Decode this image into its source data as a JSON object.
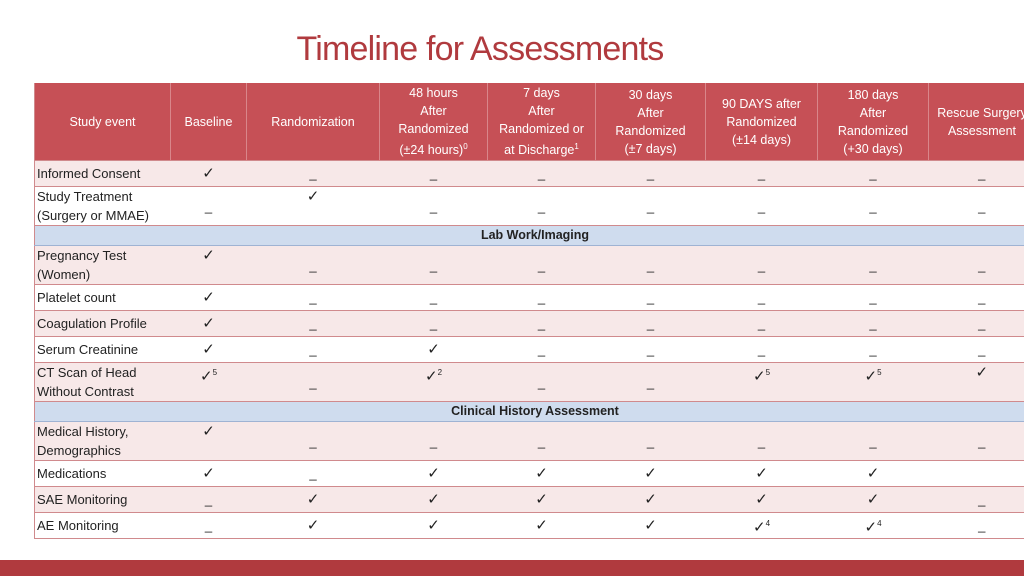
{
  "title": "Timeline for Assessments",
  "check_symbol": "✓",
  "dash_symbol": "_",
  "headers": [
    {
      "lines": [
        "Study event"
      ]
    },
    {
      "lines": [
        "Baseline"
      ]
    },
    {
      "lines": [
        "Randomization"
      ]
    },
    {
      "lines": [
        "48 hours",
        "After",
        "Randomized",
        "(±24 hours)"
      ],
      "sup": "0"
    },
    {
      "lines": [
        "7 days",
        "After",
        "Randomized or",
        "at Discharge"
      ],
      "sup": "1"
    },
    {
      "lines": [
        "30 days",
        "After",
        "Randomized",
        "(±7 days)"
      ]
    },
    {
      "lines": [
        "90 DAYS after",
        "Randomized",
        "(±14 days)"
      ]
    },
    {
      "lines": [
        "180 days",
        "After",
        "Randomized",
        "(+30 days)"
      ]
    },
    {
      "lines": [
        "Rescue Surgery",
        "Assessment"
      ]
    }
  ],
  "rows": [
    {
      "type": "row",
      "event": [
        "Informed Consent"
      ],
      "cells": [
        "c",
        "d",
        "d",
        "d",
        "d",
        "d",
        "d",
        "d"
      ]
    },
    {
      "type": "row",
      "event": [
        "Study Treatment",
        "(Surgery or MMAE)"
      ],
      "cells": [
        "d",
        "c",
        "d",
        "d",
        "d",
        "d",
        "d",
        "d"
      ]
    },
    {
      "type": "section",
      "label": "Lab Work/Imaging"
    },
    {
      "type": "row",
      "event": [
        "Pregnancy Test",
        "(Women)"
      ],
      "cells": [
        "c",
        "d",
        "d",
        "d",
        "d",
        "d",
        "d",
        "d"
      ]
    },
    {
      "type": "row",
      "event": [
        "Platelet count"
      ],
      "cells": [
        "c",
        "d",
        "d",
        "d",
        "d",
        "d",
        "d",
        "d"
      ]
    },
    {
      "type": "row",
      "event": [
        "Coagulation Profile"
      ],
      "cells": [
        "c",
        "d",
        "d",
        "d",
        "d",
        "d",
        "d",
        "d"
      ]
    },
    {
      "type": "row",
      "event": [
        "Serum Creatinine"
      ],
      "cells": [
        "c",
        "d",
        "c",
        "d",
        "d",
        "d",
        "d",
        "d"
      ]
    },
    {
      "type": "row",
      "event": [
        "CT Scan of Head",
        "Without Contrast"
      ],
      "cells": [
        "c5",
        "d",
        "c2",
        "d",
        "d",
        "c5",
        "c5",
        "c"
      ]
    },
    {
      "type": "section",
      "label": "Clinical History Assessment"
    },
    {
      "type": "row",
      "event": [
        "Medical History,",
        "Demographics"
      ],
      "cells": [
        "c",
        "d",
        "d",
        "d",
        "d",
        "d",
        "d",
        "d"
      ]
    },
    {
      "type": "row",
      "event": [
        "Medications"
      ],
      "cells": [
        "c",
        "d",
        "c",
        "c",
        "c",
        "c",
        "c",
        ""
      ]
    },
    {
      "type": "row",
      "event": [
        "SAE Monitoring"
      ],
      "cells": [
        "d",
        "c",
        "c",
        "c",
        "c",
        "c",
        "c",
        "d"
      ]
    },
    {
      "type": "row",
      "event": [
        "AE Monitoring"
      ],
      "cells": [
        "d",
        "c",
        "c",
        "c",
        "c",
        "c4",
        "c4",
        "d"
      ]
    }
  ]
}
